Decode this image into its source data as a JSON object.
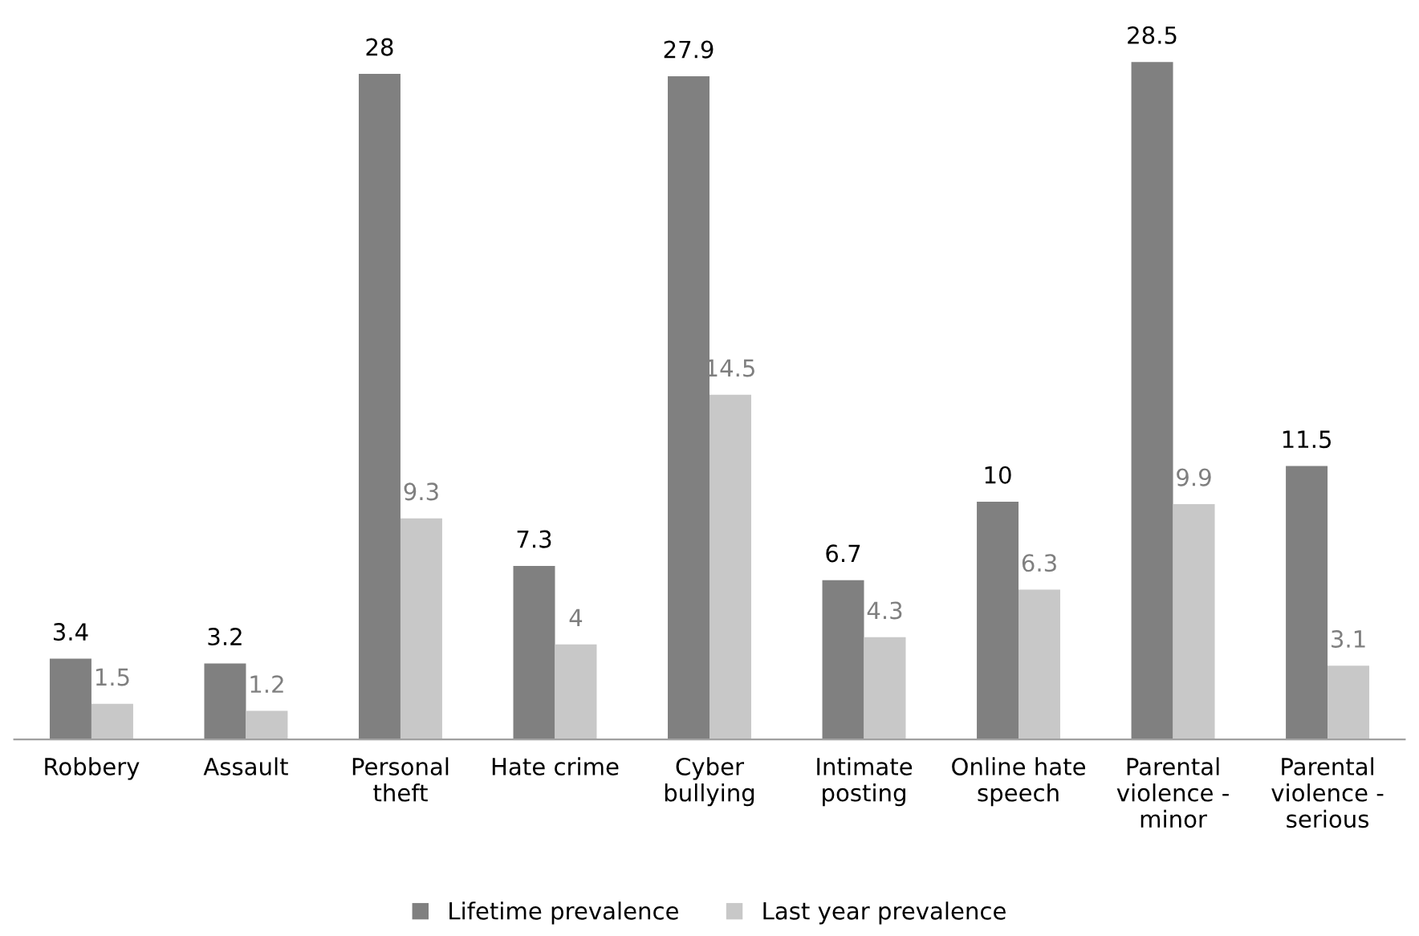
{
  "chart_data": {
    "type": "bar",
    "categories": [
      "Robbery",
      "Assault",
      "Personal\ntheft",
      "Hate crime",
      "Cyber\nbullying",
      "Intimate\nposting",
      "Online hate\nspeech",
      "Parental\nviolence -\nminor",
      "Parental\nviolence -\nserious"
    ],
    "series": [
      {
        "name": "Lifetime prevalence",
        "color": "#808080",
        "values": [
          3.4,
          3.2,
          28,
          7.3,
          27.9,
          6.7,
          10,
          28.5,
          11.5
        ]
      },
      {
        "name": "Last year prevalence",
        "color": "#c8c8c8",
        "values": [
          1.5,
          1.2,
          9.3,
          4,
          14.5,
          4.3,
          6.3,
          9.9,
          3.1
        ]
      }
    ],
    "relative": false,
    "data_labels": true,
    "legend": "bottom",
    "grid": false
  }
}
